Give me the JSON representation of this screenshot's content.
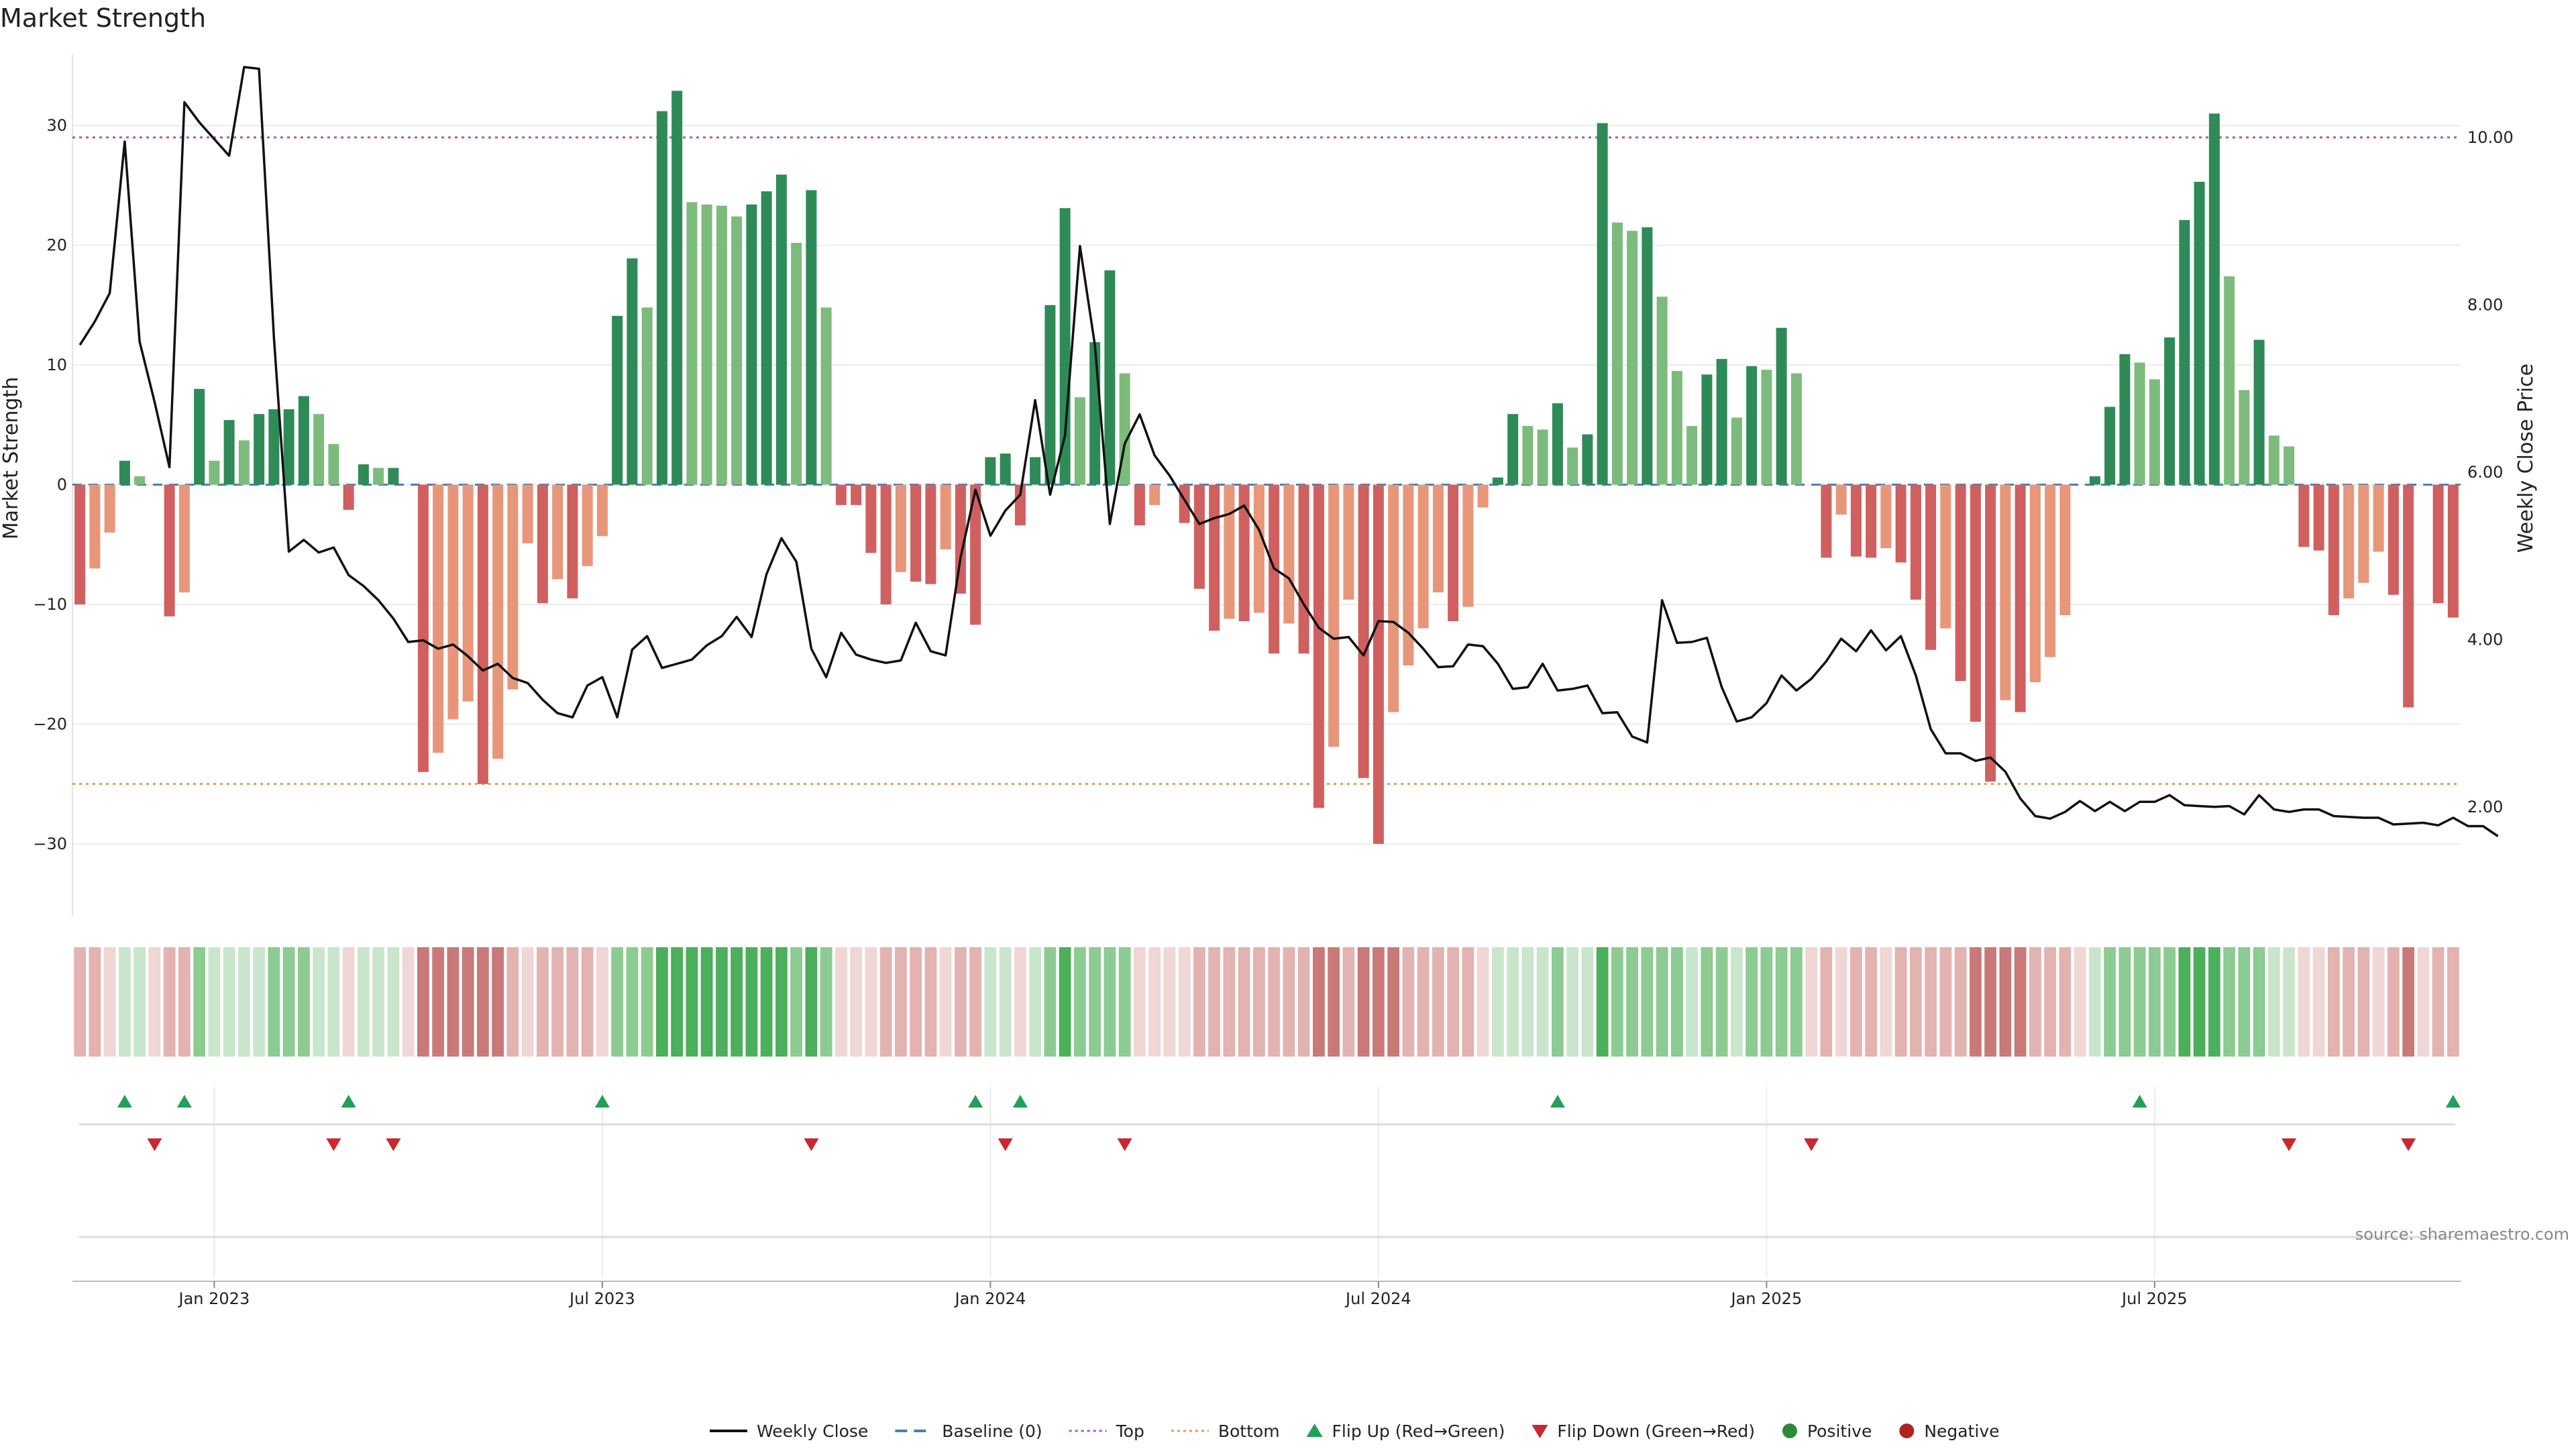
{
  "chart_data": {
    "type": "bar",
    "title": "Market Strength",
    "ylabel_left": "Market Strength",
    "ylabel_right": "Weekly Close Price",
    "source": "source: sharemaestro.com",
    "left_ylim": [
      -36,
      36
    ],
    "left_yticks": [
      30,
      20,
      10,
      0,
      -10,
      -20,
      -30
    ],
    "left_ytick_labels": [
      "30",
      "20",
      "10",
      "0",
      "−10",
      "−20",
      "−30"
    ],
    "right_ylim": [
      0.7,
      11.0
    ],
    "right_yticks": [
      10,
      8,
      6,
      4,
      2
    ],
    "right_ytick_labels": [
      "10.00",
      "8.00",
      "6.00",
      "4.00",
      "2.00"
    ],
    "top_level": 29,
    "bottom_level": -25,
    "x_ticks": [
      {
        "week": 9,
        "label": "Jan 2023"
      },
      {
        "week": 35,
        "label": "Jul 2023"
      },
      {
        "week": 61,
        "label": "Jan 2024"
      },
      {
        "week": 87,
        "label": "Jul 2024"
      },
      {
        "week": 113,
        "label": "Jan 2025"
      },
      {
        "week": 139,
        "label": "Jul 2025"
      }
    ],
    "strength": [
      -10,
      -7,
      -4,
      2,
      0.7,
      0,
      -11,
      -9,
      8,
      2,
      5.4,
      3.7,
      5.9,
      6.3,
      6.3,
      7.4,
      5.9,
      3.4,
      -2.1,
      1.7,
      1.4,
      1.4,
      0,
      -24,
      -22.4,
      -19.6,
      -18.1,
      -25,
      -22.9,
      -17.1,
      -4.9,
      -9.9,
      -7.9,
      -9.5,
      -6.8,
      -4.3,
      14.1,
      18.9,
      14.8,
      31.2,
      32.9,
      23.6,
      23.4,
      23.3,
      22.4,
      23.4,
      24.5,
      25.9,
      20.2,
      24.6,
      14.8,
      -1.7,
      -1.7,
      -5.7,
      -10,
      -7.3,
      -8.1,
      -8.3,
      -5.4,
      -9.1,
      -11.7,
      2.3,
      2.6,
      -3.4,
      2.3,
      15,
      23.1,
      7.3,
      11.9,
      17.9,
      9.3,
      -3.4,
      -1.7,
      0,
      -3.2,
      -8.7,
      -12.2,
      -11.2,
      -11.4,
      -10.7,
      -14.1,
      -11.6,
      -14.1,
      -27,
      -21.9,
      -9.6,
      -24.5,
      -30,
      -19,
      -15.1,
      -12,
      -9,
      -11.4,
      -10.2,
      -1.9,
      0.6,
      5.9,
      4.9,
      4.6,
      6.8,
      3.1,
      4.2,
      30.2,
      21.9,
      21.2,
      21.5,
      15.7,
      9.5,
      4.9,
      9.2,
      10.5,
      5.6,
      9.9,
      9.6,
      13.1,
      9.3,
      0,
      -6.1,
      -2.5,
      -6,
      -6.1,
      -5.3,
      -6.5,
      -9.6,
      -13.8,
      -12,
      -16.4,
      -19.8,
      -24.8,
      -18,
      -19,
      -16.5,
      -14.4,
      -10.9,
      0,
      0.7,
      6.5,
      10.9,
      10.2,
      8.8,
      12.3,
      22.1,
      25.3,
      31,
      17.4,
      7.9,
      12.1,
      4.1,
      3.2,
      -5.2,
      -5.5,
      -10.9,
      -9.5,
      -8.2,
      -5.6,
      -9.2,
      -18.6,
      0,
      -9.9,
      -11.1
    ],
    "weekly_close": [
      7.52,
      7.8,
      8.14,
      9.95,
      7.56,
      6.84,
      6.06,
      10.42,
      10.18,
      9.98,
      9.78,
      10.84,
      10.82,
      7.6,
      5.05,
      5.19,
      5.04,
      5.1,
      4.77,
      4.64,
      4.47,
      4.25,
      3.97,
      3.99,
      3.89,
      3.94,
      3.8,
      3.63,
      3.71,
      3.54,
      3.48,
      3.28,
      3.12,
      3.07,
      3.45,
      3.55,
      3.07,
      3.88,
      4.04,
      3.66,
      3.71,
      3.76,
      3.93,
      4.04,
      4.27,
      4.03,
      4.78,
      5.21,
      4.93,
      3.89,
      3.55,
      4.08,
      3.82,
      3.76,
      3.72,
      3.75,
      4.2,
      3.86,
      3.81,
      4.98,
      5.79,
      5.24,
      5.54,
      5.73,
      6.86,
      5.73,
      6.44,
      8.7,
      7.52,
      5.38,
      6.34,
      6.69,
      6.2,
      5.96,
      5.67,
      5.38,
      5.45,
      5.5,
      5.6,
      5.31,
      4.85,
      4.73,
      4.42,
      4.14,
      4.01,
      4.03,
      3.81,
      4.22,
      4.21,
      4.08,
      3.89,
      3.67,
      3.68,
      3.94,
      3.92,
      3.71,
      3.41,
      3.43,
      3.71,
      3.39,
      3.41,
      3.45,
      3.12,
      3.13,
      2.84,
      2.77,
      4.47,
      3.96,
      3.97,
      4.02,
      3.43,
      3.02,
      3.07,
      3.24,
      3.57,
      3.39,
      3.53,
      3.74,
      4.01,
      3.86,
      4.11,
      3.87,
      4.04,
      3.57,
      2.93,
      2.64,
      2.64,
      2.55,
      2.59,
      2.42,
      2.1,
      1.89,
      1.86,
      1.94,
      2.07,
      1.95,
      2.06,
      1.95,
      2.06,
      2.06,
      2.14,
      2.02,
      2.01,
      2.0,
      2.01,
      1.91,
      2.14,
      1.97,
      1.94,
      1.97,
      1.97,
      1.89,
      1.88,
      1.87,
      1.87,
      1.79,
      1.8,
      1.81,
      1.78,
      1.87,
      1.77,
      1.77,
      1.65
    ],
    "state_colors": {
      "strong_positive": "#4caf5b",
      "positive": "#8ccb91",
      "weak_positive": "#c9e6cc",
      "weak_negative": "#f0d6d4",
      "negative": "#e3b3b0",
      "strong_negative": "#c97a78"
    },
    "flip_up_weeks": [
      3,
      7,
      18,
      35,
      60,
      63,
      99,
      138,
      159
    ],
    "flip_down_weeks": [
      5,
      17,
      21,
      49,
      62,
      70,
      116,
      148,
      156
    ],
    "bar_colors": {
      "positive_strong": "#2e8b57",
      "positive_weak": "#7dbb7d",
      "negative_strong": "#d06060",
      "negative_weak": "#e8967a"
    },
    "line_color": "#111111",
    "top_color": "#a05cb8",
    "bottom_color": "#e0a050",
    "baseline_color": "#4a7fb5",
    "flip_up_color": "#21a05a",
    "flip_down_color": "#c8282e",
    "legend": [
      {
        "label": "Weekly Close",
        "kind": "line",
        "color": "#111111"
      },
      {
        "label": "Baseline (0)",
        "kind": "dash",
        "color": "#4a7fb5"
      },
      {
        "label": "Top",
        "kind": "dot",
        "color": "#a05cb8"
      },
      {
        "label": "Bottom",
        "kind": "dot",
        "color": "#e0a050"
      },
      {
        "label": "Flip Up (Red→Green)",
        "kind": "up",
        "color": "#21a05a"
      },
      {
        "label": "Flip Down (Green→Red)",
        "kind": "down",
        "color": "#c8282e"
      },
      {
        "label": "Positive",
        "kind": "circle",
        "color": "#2a8a3a"
      },
      {
        "label": "Negative",
        "kind": "circle",
        "color": "#b22222"
      }
    ]
  }
}
